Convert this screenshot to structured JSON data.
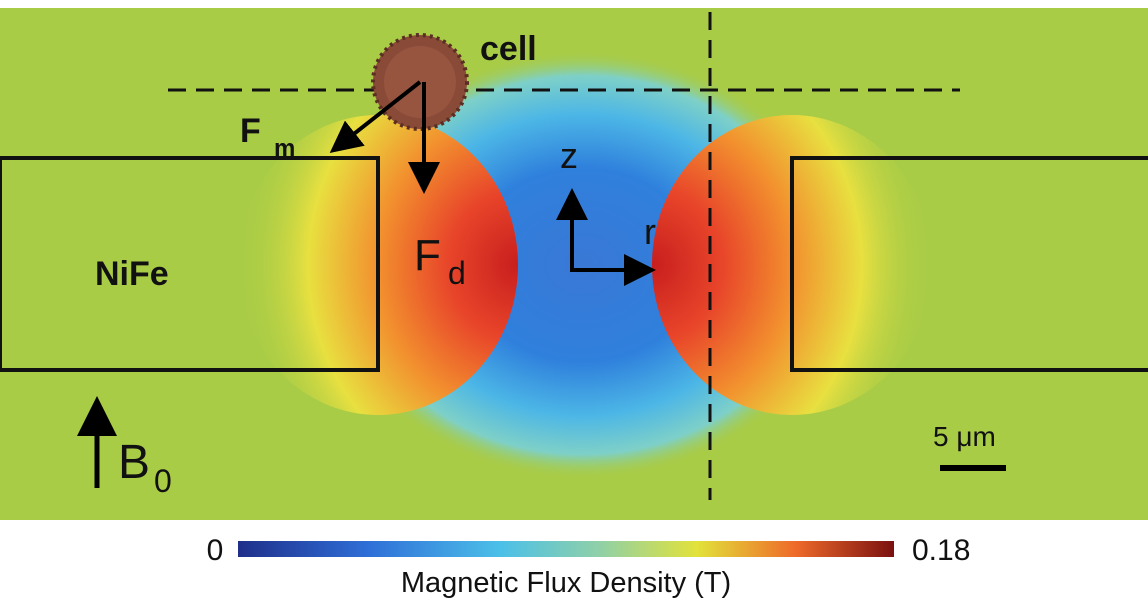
{
  "figure": {
    "cell_label": "cell",
    "force_magnetic": {
      "symbol": "F",
      "subscript": "m"
    },
    "force_drag": {
      "symbol": "F",
      "subscript": "d"
    },
    "axis_z": "z",
    "axis_r": "r",
    "material": "NiFe",
    "field": {
      "symbol": "B",
      "subscript": "0"
    },
    "scale_bar": "5 μm",
    "colorbar": {
      "min": 0,
      "max": 0.18,
      "title": "Magnetic Flux Density (T)"
    }
  }
}
